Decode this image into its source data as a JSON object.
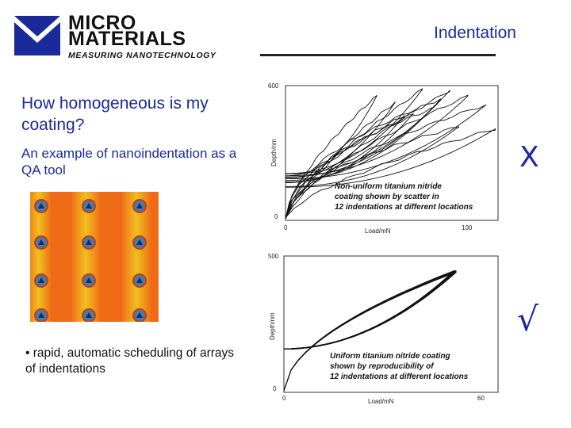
{
  "header": {
    "logo_line1": "MICRO",
    "logo_line2": "MATERIALS",
    "logo_tagline": "MEASURING NANOTECHNOLOGY",
    "title": "Indentation"
  },
  "content": {
    "question": "How homogeneous is my coating?",
    "subtitle": "An example of nanoindentation as a QA tool",
    "bullet": "• rapid, automatic scheduling of arrays of indentations"
  },
  "marks": {
    "fail": "X",
    "pass": "√"
  },
  "colors": {
    "accent": "#1a2a9a",
    "map_orange": "#f07018",
    "map_yellow": "#f0c020"
  },
  "chart_data": [
    {
      "type": "line",
      "title": "",
      "xlabel": "Load/mN",
      "ylabel": "Depth/nm",
      "xlim": [
        0,
        100
      ],
      "ylim": [
        0,
        600
      ],
      "x_ticks": [
        "0",
        "100"
      ],
      "y_ticks": [
        "0",
        "600"
      ],
      "annotation": [
        "Non-uniform titanium nitride",
        "coating shown by scatter in",
        "12 indentations at different locations"
      ],
      "max_loads": [
        95,
        110,
        100,
        90,
        80,
        70,
        115,
        60,
        85,
        65,
        50,
        75
      ],
      "max_depths": [
        420,
        520,
        560,
        585,
        500,
        480,
        410,
        530,
        545,
        470,
        560,
        590
      ]
    },
    {
      "type": "line",
      "title": "",
      "xlabel": "Load/mN",
      "ylabel": "Depth/nm",
      "xlim": [
        0,
        60
      ],
      "ylim": [
        0,
        500
      ],
      "x_ticks": [
        "0",
        "60"
      ],
      "y_ticks": [
        "0",
        "500"
      ],
      "annotation": [
        "Uniform titanium nitride coating",
        "shown by reproducibility of",
        "12 indentations at different locations"
      ],
      "max_load": 52,
      "max_depth": 440,
      "curve_count": 12
    }
  ]
}
